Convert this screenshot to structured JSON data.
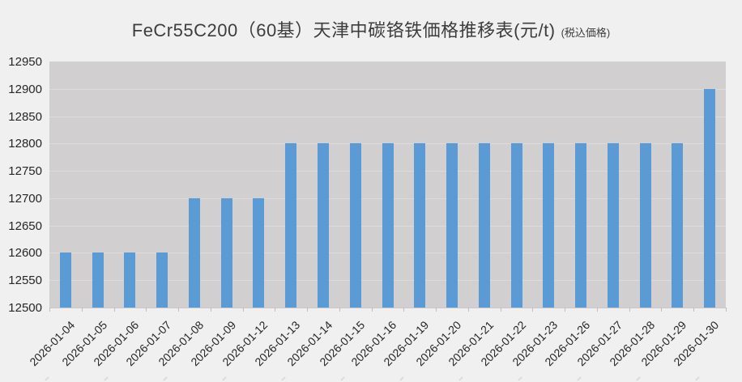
{
  "header": {
    "title": "FeCr55C200（60基）天津中碳铬铁価格推移表(元/t)",
    "subtitle": "(税込価格)"
  },
  "chart_data": {
    "type": "bar",
    "title": "FeCr55C200（60基）天津中碳铬铁価格推移表(元/t)",
    "subtitle": "(税込価格)",
    "unit": "元/t",
    "categories": [
      "2026-01-04",
      "2026-01-05",
      "2026-01-06",
      "2026-01-07",
      "2026-01-08",
      "2026-01-09",
      "2026-01-12",
      "2026-01-13",
      "2026-01-14",
      "2026-01-15",
      "2026-01-16",
      "2026-01-19",
      "2026-01-20",
      "2026-01-21",
      "2026-01-22",
      "2026-01-23",
      "2026-01-26",
      "2026-01-27",
      "2026-01-28",
      "2026-01-29",
      "2026-01-30"
    ],
    "values": [
      12600,
      12600,
      12600,
      12600,
      12700,
      12700,
      12700,
      12800,
      12800,
      12800,
      12800,
      12800,
      12800,
      12800,
      12800,
      12800,
      12800,
      12800,
      12800,
      12800,
      12900
    ],
    "ylim": [
      12500,
      12950
    ],
    "ytick_step": 50,
    "ytick_labels": [
      "12500",
      "12550",
      "12600",
      "12650",
      "12700",
      "12750",
      "12800",
      "12850",
      "12900",
      "12950"
    ],
    "xlabel": "",
    "ylabel": "",
    "grid": true,
    "legend_position": "none",
    "x_label_rotation_deg": -45,
    "colors": {
      "bar": "#5b9bd5",
      "plot_background": "#d1cfcf",
      "gridline": "#dddbdb",
      "canvas_background": "#f1f0f0",
      "axis_text": "#262626",
      "title_text": "#3d3d3d",
      "tick": "#bfbdbd"
    }
  }
}
